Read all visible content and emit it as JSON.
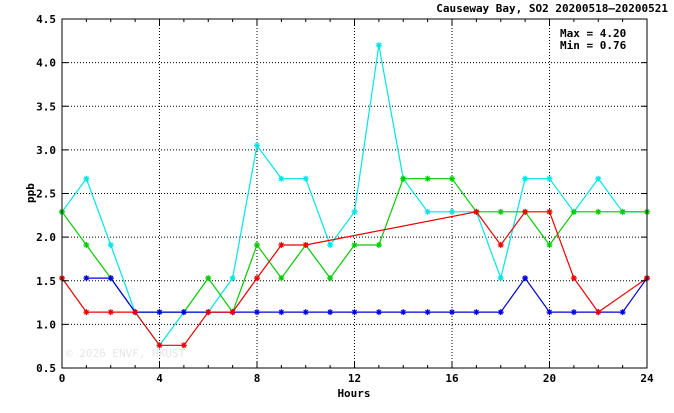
{
  "chart_data": {
    "type": "line",
    "title": "Causeway Bay, SO2 20200518–20200521",
    "xlabel": "Hours",
    "ylabel": "ppb",
    "xlim": [
      0,
      24
    ],
    "ylim": [
      0.5,
      4.5
    ],
    "x_ticks": [
      "0",
      "4",
      "8",
      "12",
      "16",
      "20",
      "24"
    ],
    "y_ticks": [
      "0.5",
      "1.0",
      "1.5",
      "2.0",
      "2.5",
      "3.0",
      "3.5",
      "4.0",
      "4.5"
    ],
    "grid": true,
    "stats": {
      "max_label": "Max = 4.20",
      "min_label": "Min = 0.76"
    },
    "watermark": "© 2026 ENVF, HKUST",
    "series": [
      {
        "color": "#00e5e5",
        "points": [
          [
            0,
            2.29
          ],
          [
            1,
            2.67
          ],
          [
            2,
            1.91
          ],
          [
            3,
            1.14
          ],
          [
            4,
            0.76
          ],
          [
            5,
            1.14
          ],
          [
            6,
            1.14
          ],
          [
            7,
            1.53
          ],
          [
            8,
            3.05
          ],
          [
            9,
            2.67
          ],
          [
            10,
            2.67
          ],
          [
            11,
            1.91
          ],
          [
            12,
            2.29
          ],
          [
            13,
            4.2
          ],
          [
            14,
            2.67
          ],
          [
            15,
            2.29
          ],
          [
            16,
            2.29
          ],
          [
            17,
            2.29
          ],
          [
            18,
            1.53
          ],
          [
            19,
            2.67
          ],
          [
            20,
            2.67
          ],
          [
            21,
            2.29
          ],
          [
            22,
            2.67
          ],
          [
            23,
            2.29
          ],
          [
            24,
            2.29
          ]
        ]
      },
      {
        "color": "#00cc00",
        "points": [
          [
            0,
            2.29
          ],
          [
            1,
            1.91
          ],
          [
            2,
            1.53
          ],
          [
            3,
            1.14
          ],
          [
            4,
            1.14
          ],
          [
            5,
            1.14
          ],
          [
            6,
            1.53
          ],
          [
            7,
            1.14
          ],
          [
            8,
            1.91
          ],
          [
            9,
            1.53
          ],
          [
            10,
            1.91
          ],
          [
            11,
            1.53
          ],
          [
            12,
            1.91
          ],
          [
            13,
            1.91
          ],
          [
            14,
            2.67
          ],
          [
            15,
            2.67
          ],
          [
            16,
            2.67
          ],
          [
            17,
            2.29
          ],
          [
            18,
            2.29
          ],
          [
            19,
            2.29
          ],
          [
            20,
            1.91
          ],
          [
            21,
            2.29
          ],
          [
            22,
            2.29
          ],
          [
            23,
            2.29
          ],
          [
            24,
            2.29
          ]
        ]
      },
      {
        "color": "#0000dd",
        "points": [
          [
            1,
            1.53
          ],
          [
            2,
            1.53
          ],
          [
            3,
            1.14
          ],
          [
            4,
            1.14
          ],
          [
            5,
            1.14
          ],
          [
            6,
            1.14
          ],
          [
            7,
            1.14
          ],
          [
            8,
            1.14
          ],
          [
            9,
            1.14
          ],
          [
            10,
            1.14
          ],
          [
            11,
            1.14
          ],
          [
            12,
            1.14
          ],
          [
            13,
            1.14
          ],
          [
            14,
            1.14
          ],
          [
            15,
            1.14
          ],
          [
            16,
            1.14
          ],
          [
            17,
            1.14
          ],
          [
            18,
            1.14
          ],
          [
            19,
            1.53
          ],
          [
            20,
            1.14
          ],
          [
            21,
            1.14
          ],
          [
            22,
            1.14
          ],
          [
            23,
            1.14
          ],
          [
            24,
            1.53
          ]
        ]
      },
      {
        "color": "#ee0000",
        "points": [
          [
            0,
            1.53
          ],
          [
            1,
            1.14
          ],
          [
            2,
            1.14
          ],
          [
            3,
            1.14
          ],
          [
            4,
            0.76
          ],
          [
            5,
            0.76
          ],
          [
            6,
            1.14
          ],
          [
            7,
            1.14
          ],
          [
            8,
            1.53
          ],
          [
            9,
            1.91
          ],
          [
            10,
            1.91
          ],
          [
            17,
            2.29
          ],
          [
            18,
            1.91
          ],
          [
            19,
            2.29
          ],
          [
            20,
            2.29
          ],
          [
            21,
            1.53
          ],
          [
            22,
            1.14
          ],
          [
            24,
            1.53
          ]
        ]
      }
    ]
  }
}
